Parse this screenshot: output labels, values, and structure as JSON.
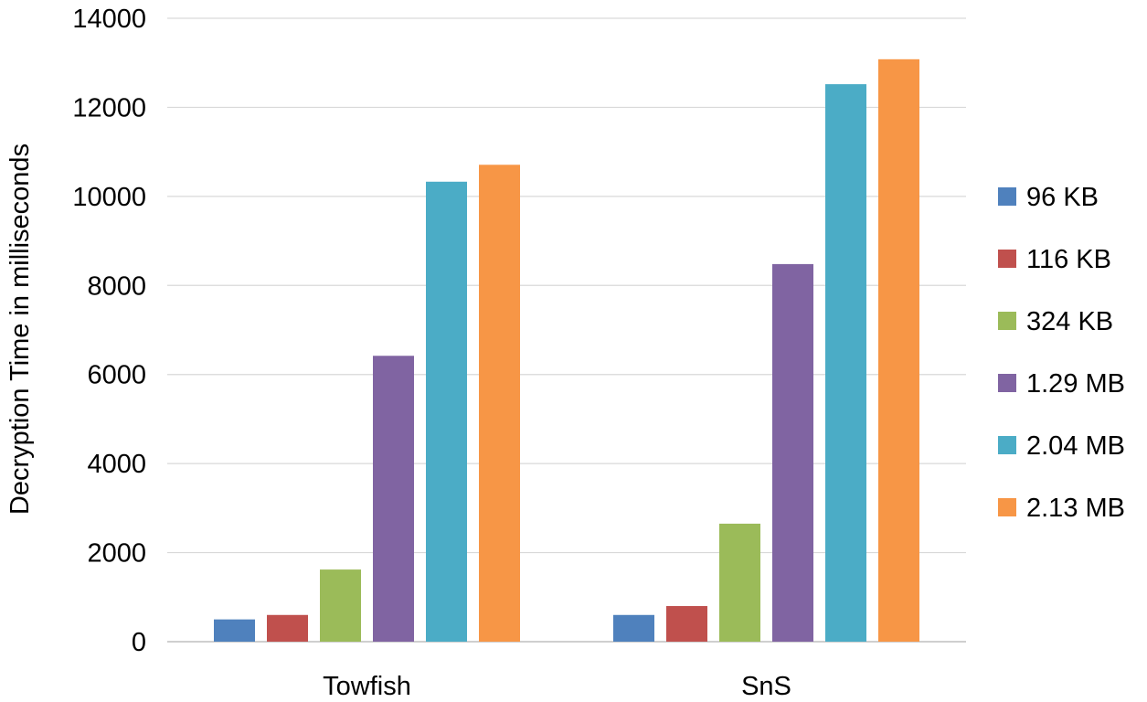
{
  "chart_data": {
    "type": "bar",
    "title": "",
    "xlabel": "",
    "ylabel": "Decryption Time in milliseconds",
    "ylim": [
      0,
      14000
    ],
    "yticks": [
      0,
      2000,
      4000,
      6000,
      8000,
      10000,
      12000,
      14000
    ],
    "ytick_labels": [
      "0",
      "2000",
      "4000",
      "6000",
      "8000",
      "10000",
      "12000",
      "14000"
    ],
    "grid": true,
    "legend_position": "right",
    "categories": [
      "Towfish",
      "SnS"
    ],
    "series": [
      {
        "name": "96 KB",
        "color": "#4f81bd",
        "values": [
          500,
          600
        ]
      },
      {
        "name": "116 KB",
        "color": "#c0504d",
        "values": [
          600,
          800
        ]
      },
      {
        "name": "324 KB",
        "color": "#9bbb59",
        "values": [
          1620,
          2650
        ]
      },
      {
        "name": "1.29 MB",
        "color": "#8064a2",
        "values": [
          6420,
          8480
        ]
      },
      {
        "name": "2.04 MB",
        "color": "#4bacc6",
        "values": [
          10330,
          12520
        ]
      },
      {
        "name": "2.13 MB",
        "color": "#f79646",
        "values": [
          10710,
          13080
        ]
      }
    ]
  }
}
